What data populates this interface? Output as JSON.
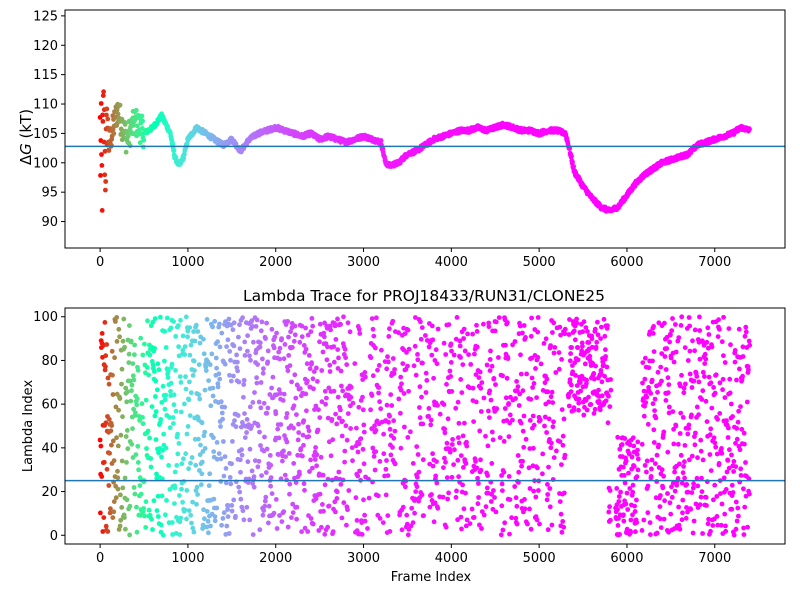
{
  "colors": {
    "reference_line": "#1f77b4",
    "colormap": "rainbow",
    "colormap_stops": [
      "#8000ff",
      "#2c7ef7",
      "#00d4e6",
      "#55fdb5",
      "#b0f68e",
      "#ffb360",
      "#ff3a1d",
      "#ff0000"
    ]
  },
  "chart_data": [
    {
      "type": "scatter",
      "title": "",
      "xlabel": "",
      "ylabel_prefix": "Δ",
      "ylabel_symbol": "G",
      "ylabel_suffix": " (kT)",
      "xlim": [
        -400,
        7800
      ],
      "ylim": [
        85.5,
        126
      ],
      "xticks": [
        0,
        1000,
        2000,
        3000,
        4000,
        5000,
        6000,
        7000
      ],
      "yticks": [
        90,
        95,
        100,
        105,
        110,
        115,
        120,
        125
      ],
      "hline": 102.8,
      "n_frames": 7400,
      "trace_keypoints": {
        "x": [
          0,
          20,
          40,
          60,
          80,
          100,
          150,
          200,
          300,
          400,
          500,
          600,
          700,
          800,
          850,
          900,
          950,
          1000,
          1100,
          1200,
          1300,
          1400,
          1500,
          1600,
          1700,
          1800,
          1900,
          2000,
          2100,
          2200,
          2300,
          2400,
          2500,
          2600,
          2700,
          2800,
          2900,
          3000,
          3100,
          3200,
          3250,
          3300,
          3400,
          3500,
          3600,
          3700,
          3800,
          3900,
          4000,
          4100,
          4200,
          4300,
          4400,
          4500,
          4600,
          4700,
          4800,
          4900,
          5000,
          5100,
          5200,
          5300,
          5350,
          5400,
          5500,
          5600,
          5700,
          5800,
          5900,
          6000,
          6100,
          6200,
          6300,
          6400,
          6500,
          6600,
          6700,
          6800,
          6900,
          7000,
          7100,
          7200,
          7300,
          7400
        ],
        "y": [
          104,
          96,
          108,
          99,
          107,
          103,
          106,
          109,
          104,
          107,
          105,
          106,
          108,
          105,
          101,
          99.5,
          101,
          104,
          106,
          105,
          104,
          103,
          104,
          102,
          104,
          105,
          105.5,
          106,
          105.5,
          105,
          104.5,
          105,
          104,
          104.5,
          104,
          103.5,
          104,
          104.5,
          104,
          103.5,
          100,
          99.5,
          100,
          101.5,
          102,
          103,
          104,
          104.5,
          105,
          105.5,
          105.5,
          106,
          105.5,
          106,
          106.5,
          106,
          105.5,
          105.5,
          105,
          105.5,
          105.5,
          105,
          102,
          98.5,
          96,
          94,
          92.5,
          91.8,
          92.5,
          94.5,
          96.5,
          98,
          99,
          100,
          100.5,
          101,
          101.5,
          103,
          103.5,
          104,
          104.5,
          105,
          106,
          105.5
        ]
      }
    },
    {
      "type": "scatter",
      "title": "Lambda Trace for PROJ18433/RUN31/CLONE25",
      "xlabel": "Frame Index",
      "ylabel": "Lambda Index",
      "xlim": [
        -400,
        7800
      ],
      "ylim": [
        -4,
        104
      ],
      "xticks": [
        0,
        1000,
        2000,
        3000,
        4000,
        5000,
        6000,
        7000
      ],
      "yticks": [
        0,
        20,
        40,
        60,
        80,
        100
      ],
      "hline": 25,
      "n_frames": 7400,
      "gaps": [
        [
          5300,
          5330
        ],
        [
          5820,
          5870
        ],
        [
          6130,
          6170
        ]
      ]
    }
  ]
}
